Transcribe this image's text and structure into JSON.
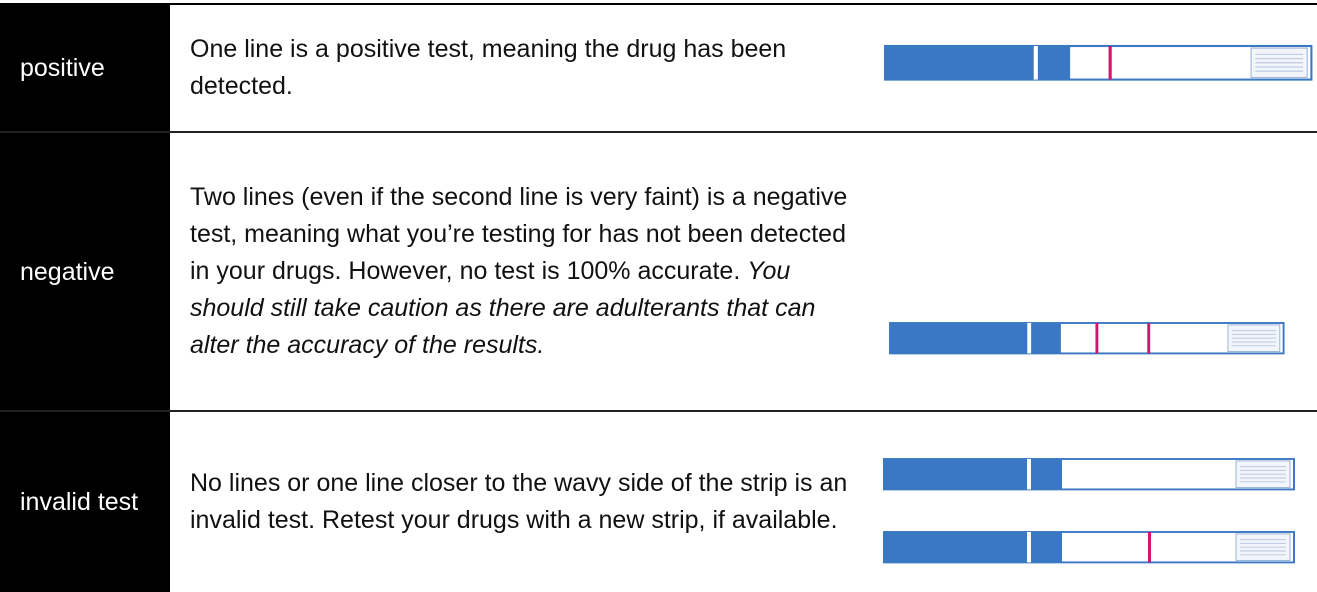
{
  "table": {
    "rows": [
      {
        "label": "positive",
        "text": "One line is a positive test, meaning the drug has been detected."
      },
      {
        "label": "negative",
        "text": "Two lines (even if the second line is very faint) is a negative test, meaning what you’re testing for has not been detected in your drugs. However, no test is 100% accurate.",
        "emphasis": "You should still take caution as there are adulterants that can alter the accuracy of the results."
      },
      {
        "label": "invalid test",
        "text": "No lines or one line closer to the wavy side of the strip is an invalid test. Retest your drugs with a new strip, if available."
      }
    ]
  }
}
